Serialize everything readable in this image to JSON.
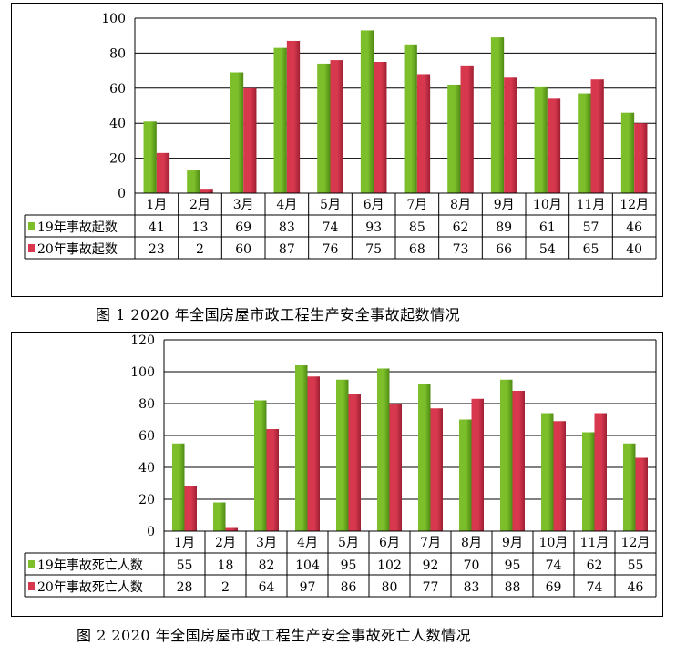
{
  "colors": {
    "series_2019": "#7cbf2a",
    "series_2019_dark": "#4f8a14",
    "series_2020": "#d8384d",
    "series_2020_dark": "#9e1f33",
    "gridline": "#000000"
  },
  "captions": {
    "figure1": "图 1  2020 年全国房屋市政工程生产安全事故起数情况",
    "figure2": "图 2  2020 年全国房屋市政工程生产安全事故死亡人数情况"
  },
  "chart_data": [
    {
      "type": "bar",
      "categories": [
        "1月",
        "2月",
        "3月",
        "4月",
        "5月",
        "6月",
        "7月",
        "8月",
        "9月",
        "10月",
        "11月",
        "12月"
      ],
      "series": [
        {
          "name": "19年事故起数",
          "values": [
            41,
            13,
            69,
            83,
            74,
            93,
            85,
            62,
            89,
            61,
            57,
            46
          ]
        },
        {
          "name": "20年事故起数",
          "values": [
            23,
            2,
            60,
            87,
            76,
            75,
            68,
            73,
            66,
            54,
            65,
            40
          ]
        }
      ],
      "yticks": [
        0,
        20,
        40,
        60,
        80,
        100
      ],
      "ylim": [
        0,
        100
      ],
      "grid": true,
      "data_table": true
    },
    {
      "type": "bar",
      "categories": [
        "1月",
        "2月",
        "3月",
        "4月",
        "5月",
        "6月",
        "7月",
        "8月",
        "9月",
        "10月",
        "11月",
        "12月"
      ],
      "series": [
        {
          "name": "19年事故死亡人数",
          "values": [
            55,
            18,
            82,
            104,
            95,
            102,
            92,
            70,
            95,
            74,
            62,
            55
          ]
        },
        {
          "name": "20年事故死亡人数",
          "values": [
            28,
            2,
            64,
            97,
            86,
            80,
            77,
            83,
            88,
            69,
            74,
            46
          ]
        }
      ],
      "yticks": [
        0,
        20,
        40,
        60,
        80,
        100,
        120
      ],
      "ylim": [
        0,
        120
      ],
      "grid": true,
      "data_table": true
    }
  ]
}
